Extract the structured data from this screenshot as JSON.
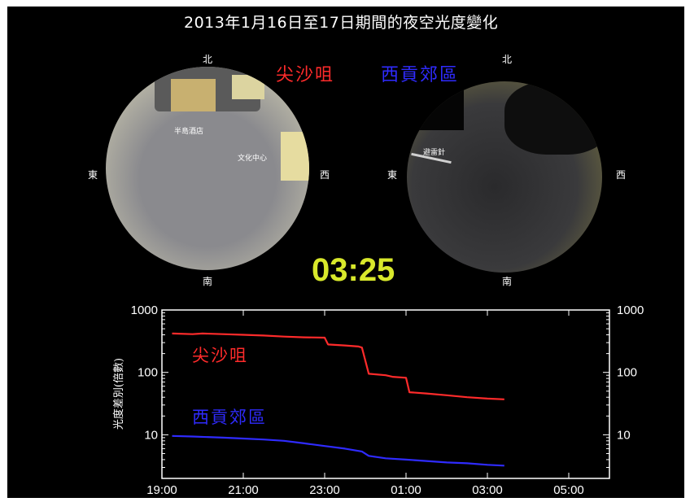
{
  "title": "2013年1月16日至17日期間的夜空光度變化",
  "clock": "03:25",
  "colors": {
    "red_site": "#ff2b2b",
    "blue_site": "#2f2bff",
    "clock": "#d8e82b"
  },
  "cameras": [
    {
      "name": "尖沙咀",
      "north": "北",
      "south": "南",
      "east": "東",
      "west": "西",
      "landmarks": [
        "半島酒店",
        "文化中心"
      ]
    },
    {
      "name": "西貢郊區",
      "north": "北",
      "south": "南",
      "east": "東",
      "west": "西",
      "landmarks": [
        "避雷針"
      ]
    }
  ],
  "chart_data": {
    "type": "line",
    "ylabel": "光度差別(倍數)",
    "y_scale": "log",
    "ylim": [
      2,
      1000
    ],
    "yticks": [
      10,
      100,
      1000
    ],
    "ytick_labels": [
      "10",
      "100",
      "1000"
    ],
    "xlim": [
      "19:00",
      "06:00"
    ],
    "xticks": [
      "19:00",
      "21:00",
      "23:00",
      "01:00",
      "03:00",
      "05:00"
    ],
    "grid": false,
    "series": [
      {
        "name": "尖沙咀",
        "color": "#ff2b2b",
        "x": [
          "19:15",
          "19:45",
          "20:00",
          "20:30",
          "21:00",
          "21:30",
          "22:00",
          "22:30",
          "23:00",
          "23:05",
          "23:30",
          "23:50",
          "23:55",
          "00:05",
          "00:30",
          "00:40",
          "01:00",
          "01:05",
          "01:30",
          "02:00",
          "02:30",
          "03:00",
          "03:25"
        ],
        "y": [
          420,
          410,
          420,
          410,
          400,
          390,
          375,
          365,
          360,
          280,
          270,
          260,
          250,
          95,
          90,
          85,
          82,
          48,
          46,
          43,
          40,
          38,
          37
        ]
      },
      {
        "name": "西貢郊區",
        "color": "#2f2bff",
        "x": [
          "19:15",
          "19:45",
          "20:30",
          "21:00",
          "21:30",
          "22:00",
          "22:30",
          "23:00",
          "23:30",
          "23:55",
          "00:05",
          "00:30",
          "01:00",
          "01:30",
          "02:00",
          "02:30",
          "03:00",
          "03:25"
        ],
        "y": [
          9.6,
          9.4,
          9.0,
          8.7,
          8.4,
          8.0,
          7.3,
          6.6,
          6.0,
          5.4,
          4.6,
          4.2,
          4.0,
          3.8,
          3.6,
          3.5,
          3.3,
          3.2
        ]
      }
    ]
  }
}
